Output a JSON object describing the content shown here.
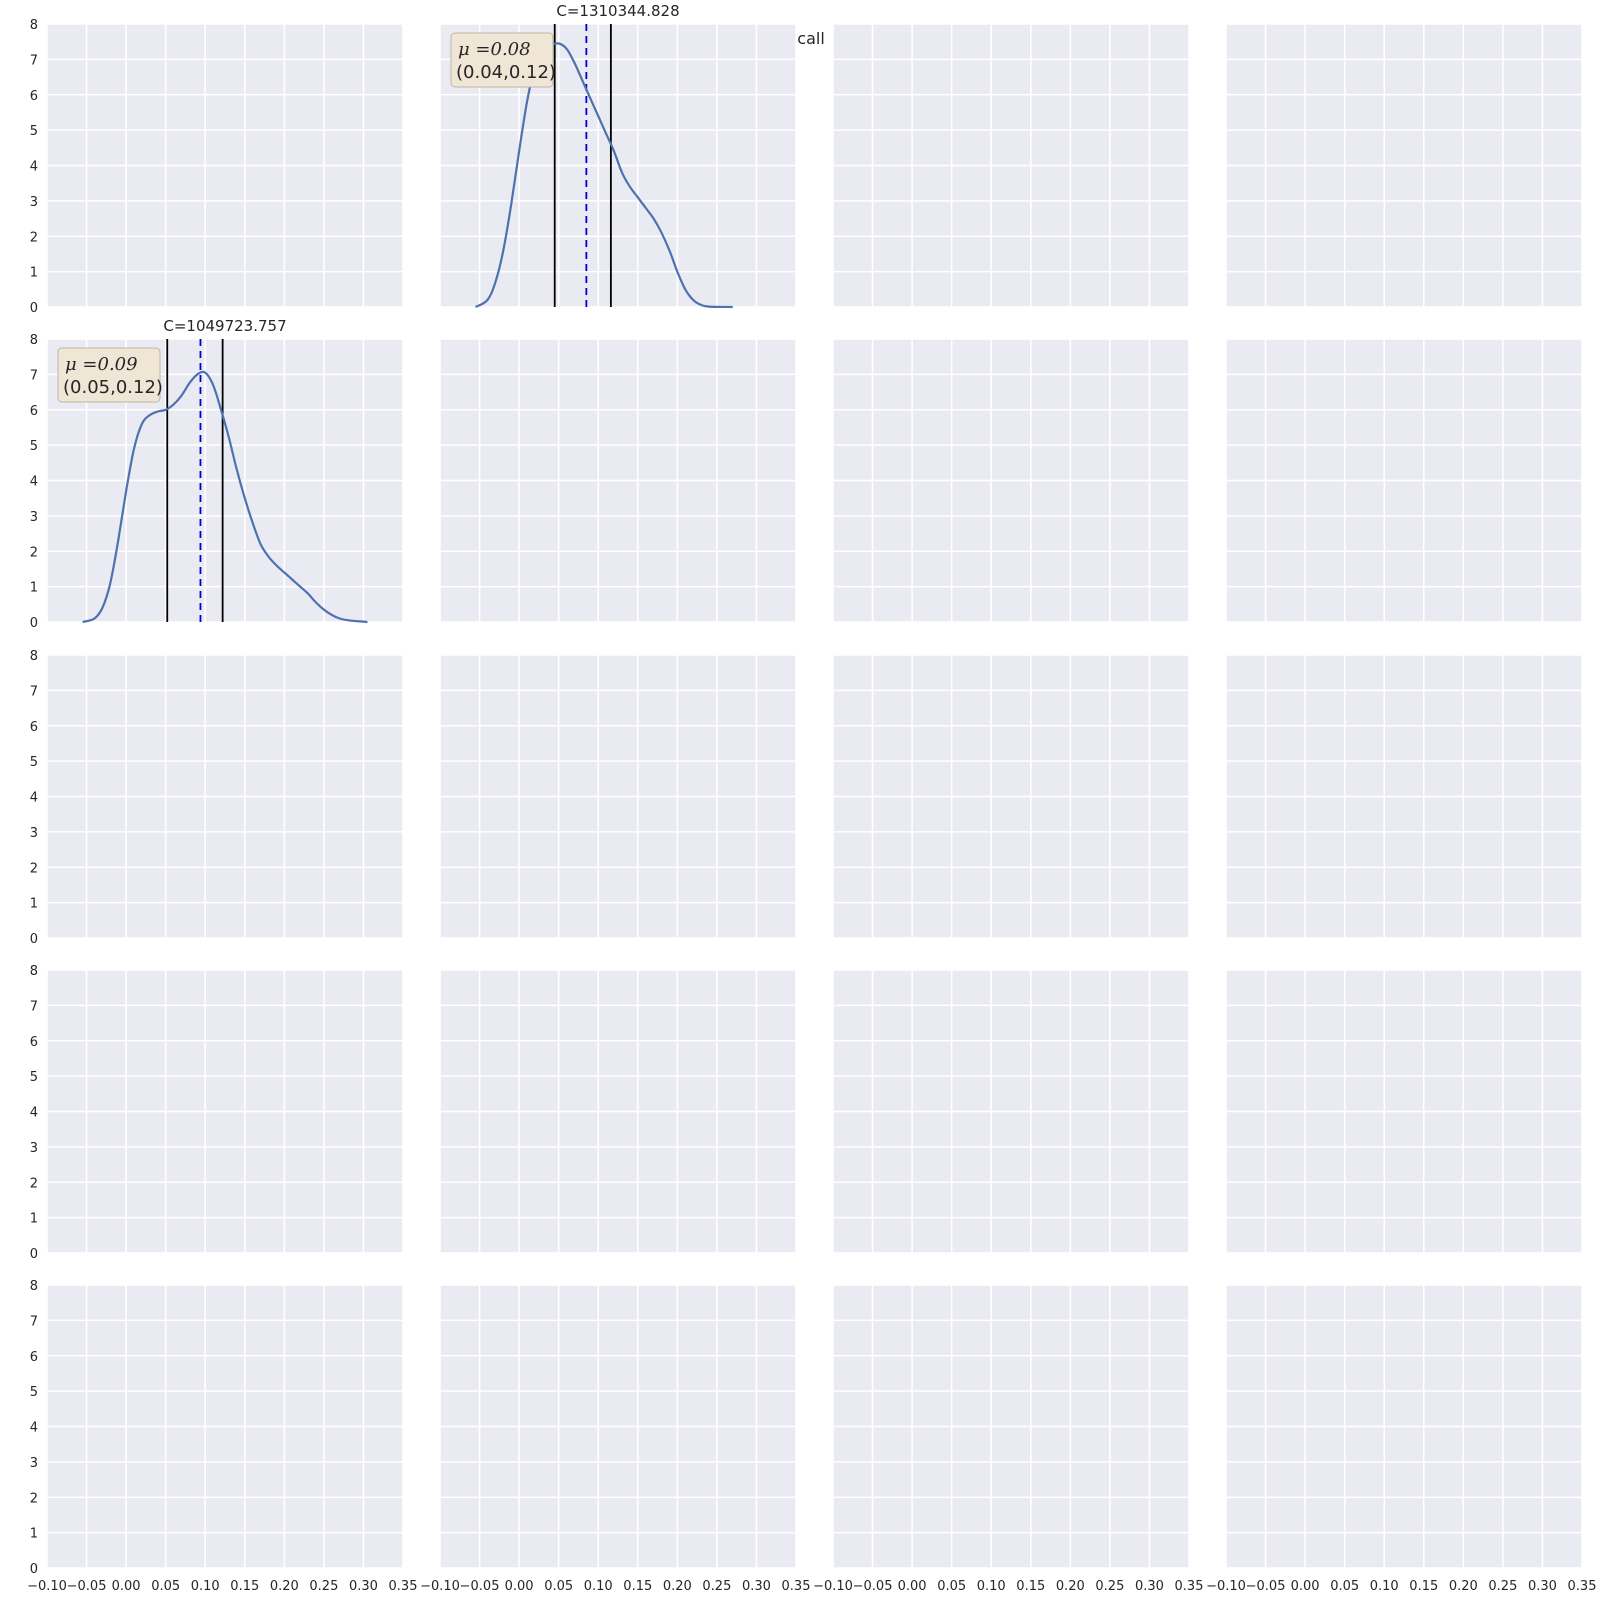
{
  "suptitle": "recall",
  "chart_data": {
    "type": "grid-of-kde-plots",
    "rows": 5,
    "cols": 4,
    "xlim": [
      -0.1,
      0.35
    ],
    "ylim": [
      0,
      8
    ],
    "xticks": [
      "−0.10",
      "−0.05",
      "0.00",
      "0.05",
      "0.10",
      "0.15",
      "0.20",
      "0.25",
      "0.30",
      "0.35"
    ],
    "xtick_values": [
      -0.1,
      -0.05,
      0.0,
      0.05,
      0.1,
      0.15,
      0.2,
      0.25,
      0.3,
      0.35
    ],
    "yticks": [
      "0",
      "1",
      "2",
      "3",
      "4",
      "5",
      "6",
      "7",
      "8"
    ],
    "ytick_values": [
      0,
      1,
      2,
      3,
      4,
      5,
      6,
      7,
      8
    ],
    "grid": true,
    "colors": {
      "background": "#EAEAF2",
      "grid": "#FFFFFF",
      "curve": "#4C72B0",
      "mean_line": "#0000CC",
      "ci_line": "#000000",
      "box_fill": "#F0E6D6",
      "box_edge": "#BFB5A5"
    },
    "panels": [
      {
        "row": 0,
        "col": 1,
        "title": "C=1310344.828",
        "mu_label": "μ =0.08",
        "ci_label": "(0.04,0.12)",
        "mean": 0.085,
        "ci": [
          0.045,
          0.116
        ],
        "curve": [
          [
            -0.055,
            0.0
          ],
          [
            -0.04,
            0.2
          ],
          [
            -0.03,
            0.7
          ],
          [
            -0.02,
            1.6
          ],
          [
            -0.01,
            2.9
          ],
          [
            0.0,
            4.4
          ],
          [
            0.01,
            5.8
          ],
          [
            0.02,
            6.8
          ],
          [
            0.03,
            7.25
          ],
          [
            0.04,
            7.4
          ],
          [
            0.05,
            7.45
          ],
          [
            0.06,
            7.3
          ],
          [
            0.07,
            6.9
          ],
          [
            0.08,
            6.4
          ],
          [
            0.09,
            5.9
          ],
          [
            0.1,
            5.4
          ],
          [
            0.11,
            4.9
          ],
          [
            0.12,
            4.4
          ],
          [
            0.13,
            3.8
          ],
          [
            0.14,
            3.4
          ],
          [
            0.15,
            3.1
          ],
          [
            0.16,
            2.8
          ],
          [
            0.17,
            2.5
          ],
          [
            0.18,
            2.1
          ],
          [
            0.19,
            1.6
          ],
          [
            0.2,
            1.0
          ],
          [
            0.21,
            0.5
          ],
          [
            0.22,
            0.2
          ],
          [
            0.23,
            0.06
          ],
          [
            0.24,
            0.01
          ],
          [
            0.27,
            0.0
          ]
        ]
      },
      {
        "row": 1,
        "col": 0,
        "title": "C=1049723.757",
        "mu_label": "μ =0.09",
        "ci_label": "(0.05,0.12)",
        "mean": 0.094,
        "ci": [
          0.052,
          0.122
        ],
        "curve": [
          [
            -0.055,
            0.0
          ],
          [
            -0.04,
            0.1
          ],
          [
            -0.03,
            0.4
          ],
          [
            -0.02,
            1.1
          ],
          [
            -0.01,
            2.3
          ],
          [
            0.0,
            3.7
          ],
          [
            0.01,
            4.9
          ],
          [
            0.02,
            5.6
          ],
          [
            0.03,
            5.85
          ],
          [
            0.04,
            5.95
          ],
          [
            0.05,
            6.0
          ],
          [
            0.06,
            6.15
          ],
          [
            0.07,
            6.4
          ],
          [
            0.08,
            6.75
          ],
          [
            0.09,
            7.0
          ],
          [
            0.1,
            7.05
          ],
          [
            0.11,
            6.7
          ],
          [
            0.12,
            6.0
          ],
          [
            0.13,
            5.2
          ],
          [
            0.14,
            4.3
          ],
          [
            0.15,
            3.5
          ],
          [
            0.16,
            2.8
          ],
          [
            0.17,
            2.2
          ],
          [
            0.18,
            1.85
          ],
          [
            0.19,
            1.6
          ],
          [
            0.2,
            1.4
          ],
          [
            0.21,
            1.2
          ],
          [
            0.22,
            1.0
          ],
          [
            0.23,
            0.8
          ],
          [
            0.24,
            0.55
          ],
          [
            0.25,
            0.35
          ],
          [
            0.26,
            0.2
          ],
          [
            0.27,
            0.1
          ],
          [
            0.28,
            0.05
          ],
          [
            0.3,
            0.01
          ],
          [
            0.305,
            0.0
          ]
        ]
      }
    ]
  }
}
